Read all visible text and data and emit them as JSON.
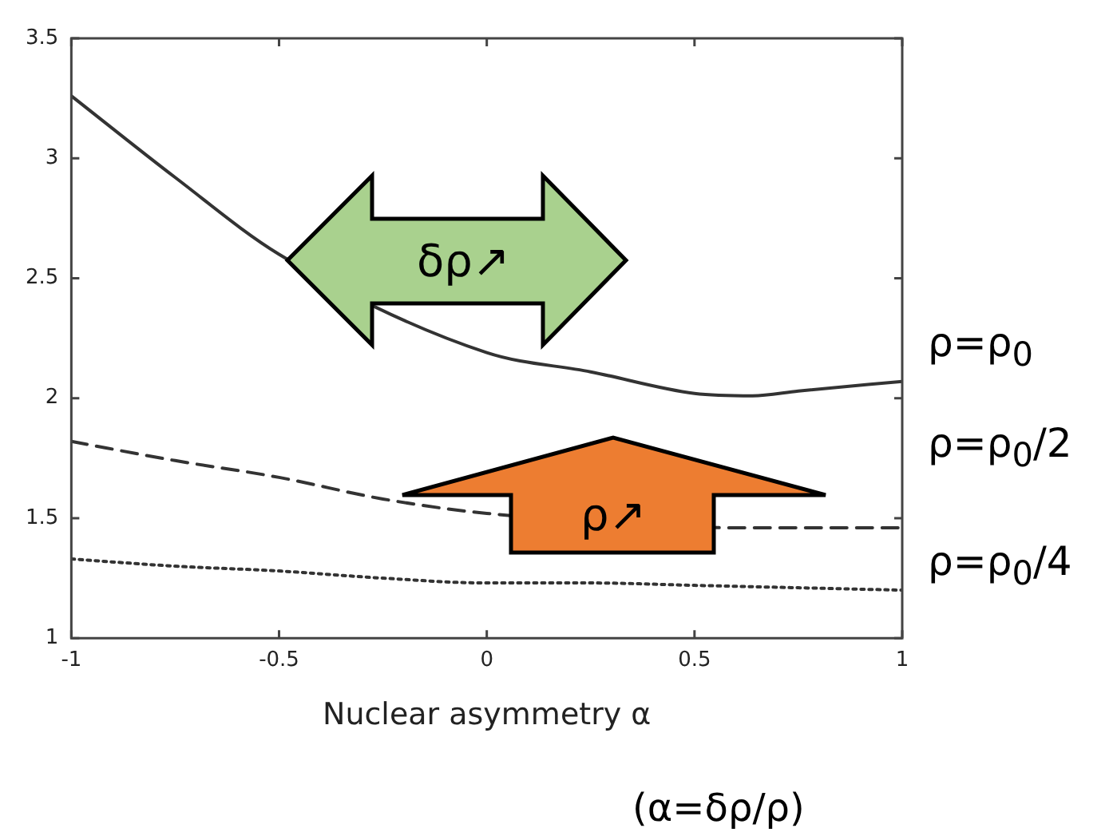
{
  "chart_data": {
    "type": "line",
    "xlabel": "Nuclear asymmetry α",
    "series": [
      {
        "name": "ρ=ρ$_{0}$",
        "color": "#333333",
        "line_style": "solid",
        "x": [
          -1,
          -0.75,
          -0.5,
          0,
          0.25,
          0.5,
          0.64,
          0.75,
          1
        ],
        "values": [
          3.26,
          2.92,
          2.6,
          2.19,
          2.11,
          2.02,
          2.01,
          2.03,
          2.07
        ]
      },
      {
        "name": "ρ=ρ$_{0}$/2",
        "color": "#333333",
        "line_style": "dashed",
        "x": [
          -1,
          -0.75,
          -0.5,
          -0.25,
          0,
          0.6,
          0.75,
          1
        ],
        "values": [
          1.82,
          1.74,
          1.67,
          1.58,
          1.52,
          1.46,
          1.46,
          1.46
        ]
      },
      {
        "name": "ρ=ρ$_{0}$/4",
        "color": "#333333",
        "line_style": "dotted",
        "x": [
          -1,
          -0.75,
          -0.5,
          -0.25,
          0,
          0.25,
          0.5,
          0.75,
          1
        ],
        "values": [
          1.33,
          1.3,
          1.28,
          1.25,
          1.23,
          1.23,
          1.22,
          1.21,
          1.2
        ]
      }
    ],
    "xlim": [
      -1,
      1
    ],
    "xticks": [
      -1,
      -0.5,
      0,
      0.5,
      1
    ],
    "ylim": [
      1,
      3.5
    ],
    "yticks": [
      1,
      1.5,
      2,
      2.5,
      3,
      3.5
    ],
    "grid": false,
    "legend": false,
    "marker": "none",
    "annotations": [
      "δρ↗",
      "ρ↗",
      "(α=δρ/ρ)"
    ]
  }
}
